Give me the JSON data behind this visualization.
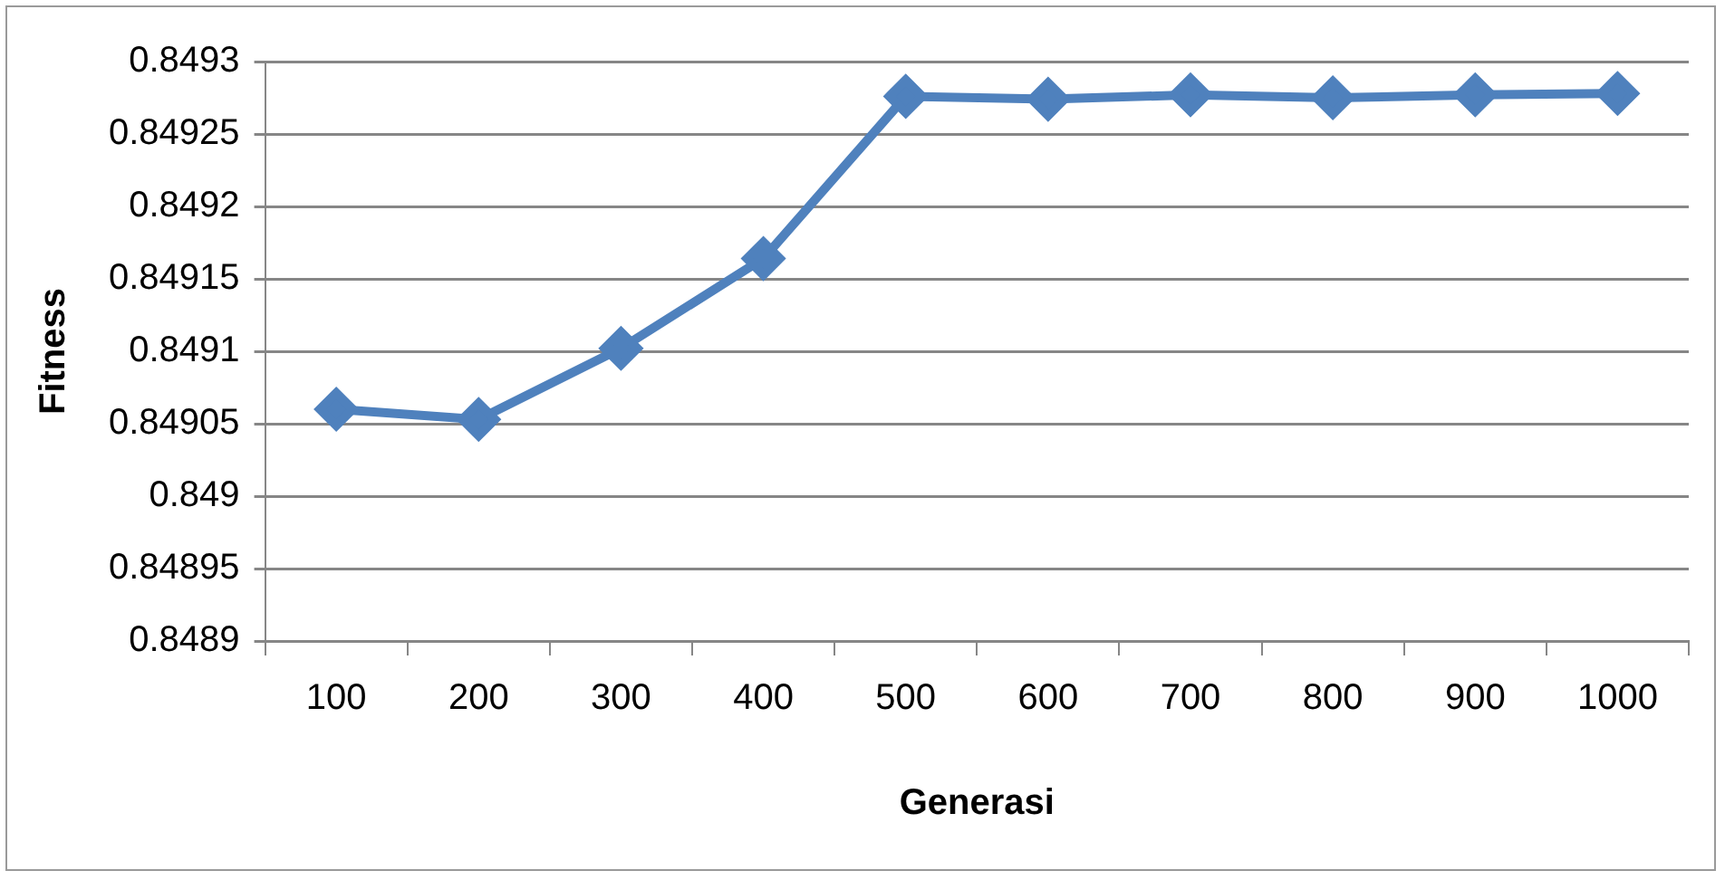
{
  "chart_data": {
    "type": "line",
    "xlabel": "Generasi",
    "ylabel": "Fitness",
    "categories": [
      "100",
      "200",
      "300",
      "400",
      "500",
      "600",
      "700",
      "800",
      "900",
      "1000"
    ],
    "series": [
      {
        "color": "#4f81bd",
        "values": [
          0.84906,
          0.849053,
          0.849102,
          0.849164,
          0.849276,
          0.849274,
          0.849277,
          0.849275,
          0.849277,
          0.849278
        ]
      }
    ],
    "ylim": [
      0.8489,
      0.8493
    ],
    "yticks": [
      0.8489,
      0.84895,
      0.849,
      0.84905,
      0.8491,
      0.84915,
      0.8492,
      0.84925,
      0.8493
    ],
    "grid": "y",
    "legend": false,
    "marker": "diamond",
    "line_style": "solid"
  }
}
